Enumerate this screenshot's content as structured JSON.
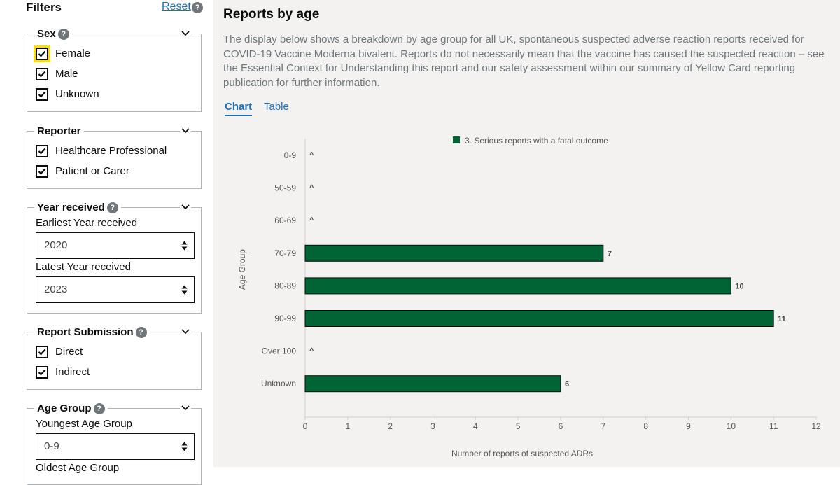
{
  "sidebar": {
    "title": "Filters",
    "reset_label": "Reset",
    "help_glyph": "?",
    "sex": {
      "legend": "Sex",
      "options": [
        {
          "label": "Female",
          "checked": true
        },
        {
          "label": "Male",
          "checked": true
        },
        {
          "label": "Unknown",
          "checked": true
        }
      ]
    },
    "reporter": {
      "legend": "Reporter",
      "options": [
        {
          "label": "Healthcare Professional",
          "checked": true
        },
        {
          "label": "Patient or Carer",
          "checked": true
        }
      ]
    },
    "year_received": {
      "legend": "Year received",
      "earliest_label": "Earliest Year received",
      "earliest_value": "2020",
      "latest_label": "Latest Year received",
      "latest_value": "2023"
    },
    "report_submission": {
      "legend": "Report Submission",
      "options": [
        {
          "label": "Direct",
          "checked": true
        },
        {
          "label": "Indirect",
          "checked": true
        }
      ]
    },
    "age_group": {
      "legend": "Age Group",
      "youngest_label": "Youngest Age Group",
      "youngest_value": "0-9",
      "oldest_label": "Oldest Age Group"
    }
  },
  "main": {
    "title": "Reports by age",
    "description": "The display below shows a breakdown by age group for all UK, spontaneous suspected adverse reaction reports received for COVID-19 Vaccine Moderna bivalent. Reports do not necessarily mean that the vaccine has caused the suspected reaction – see the Essential Context for Understanding this report and our safety assessment within our summary of Yellow Card reporting publication for further information.",
    "tabs": [
      {
        "label": "Chart",
        "active": true
      },
      {
        "label": "Table",
        "active": false
      }
    ]
  },
  "colors": {
    "bar": "#006435",
    "link": "#1d70b8",
    "focus": "#ffdd00"
  },
  "chart_data": {
    "type": "bar",
    "orientation": "horizontal",
    "series": [
      {
        "name": "3. Serious reports with a fatal outcome",
        "values": [
          null,
          null,
          null,
          7,
          10,
          11,
          null,
          6
        ],
        "labels": [
          "^",
          "^",
          "^",
          "7",
          "10",
          "11",
          "^",
          "6"
        ]
      }
    ],
    "categories": [
      "0-9",
      "50-59",
      "60-69",
      "70-79",
      "80-89",
      "90-99",
      "Over 100",
      "Unknown"
    ],
    "xlabel": "Number of reports of suspected ADRs",
    "ylabel": "Age Group",
    "xlim": [
      0,
      12
    ],
    "xticks": [
      0,
      1,
      2,
      3,
      4,
      5,
      6,
      7,
      8,
      9,
      10,
      11,
      12
    ],
    "legend_position": "top",
    "grid": false
  }
}
